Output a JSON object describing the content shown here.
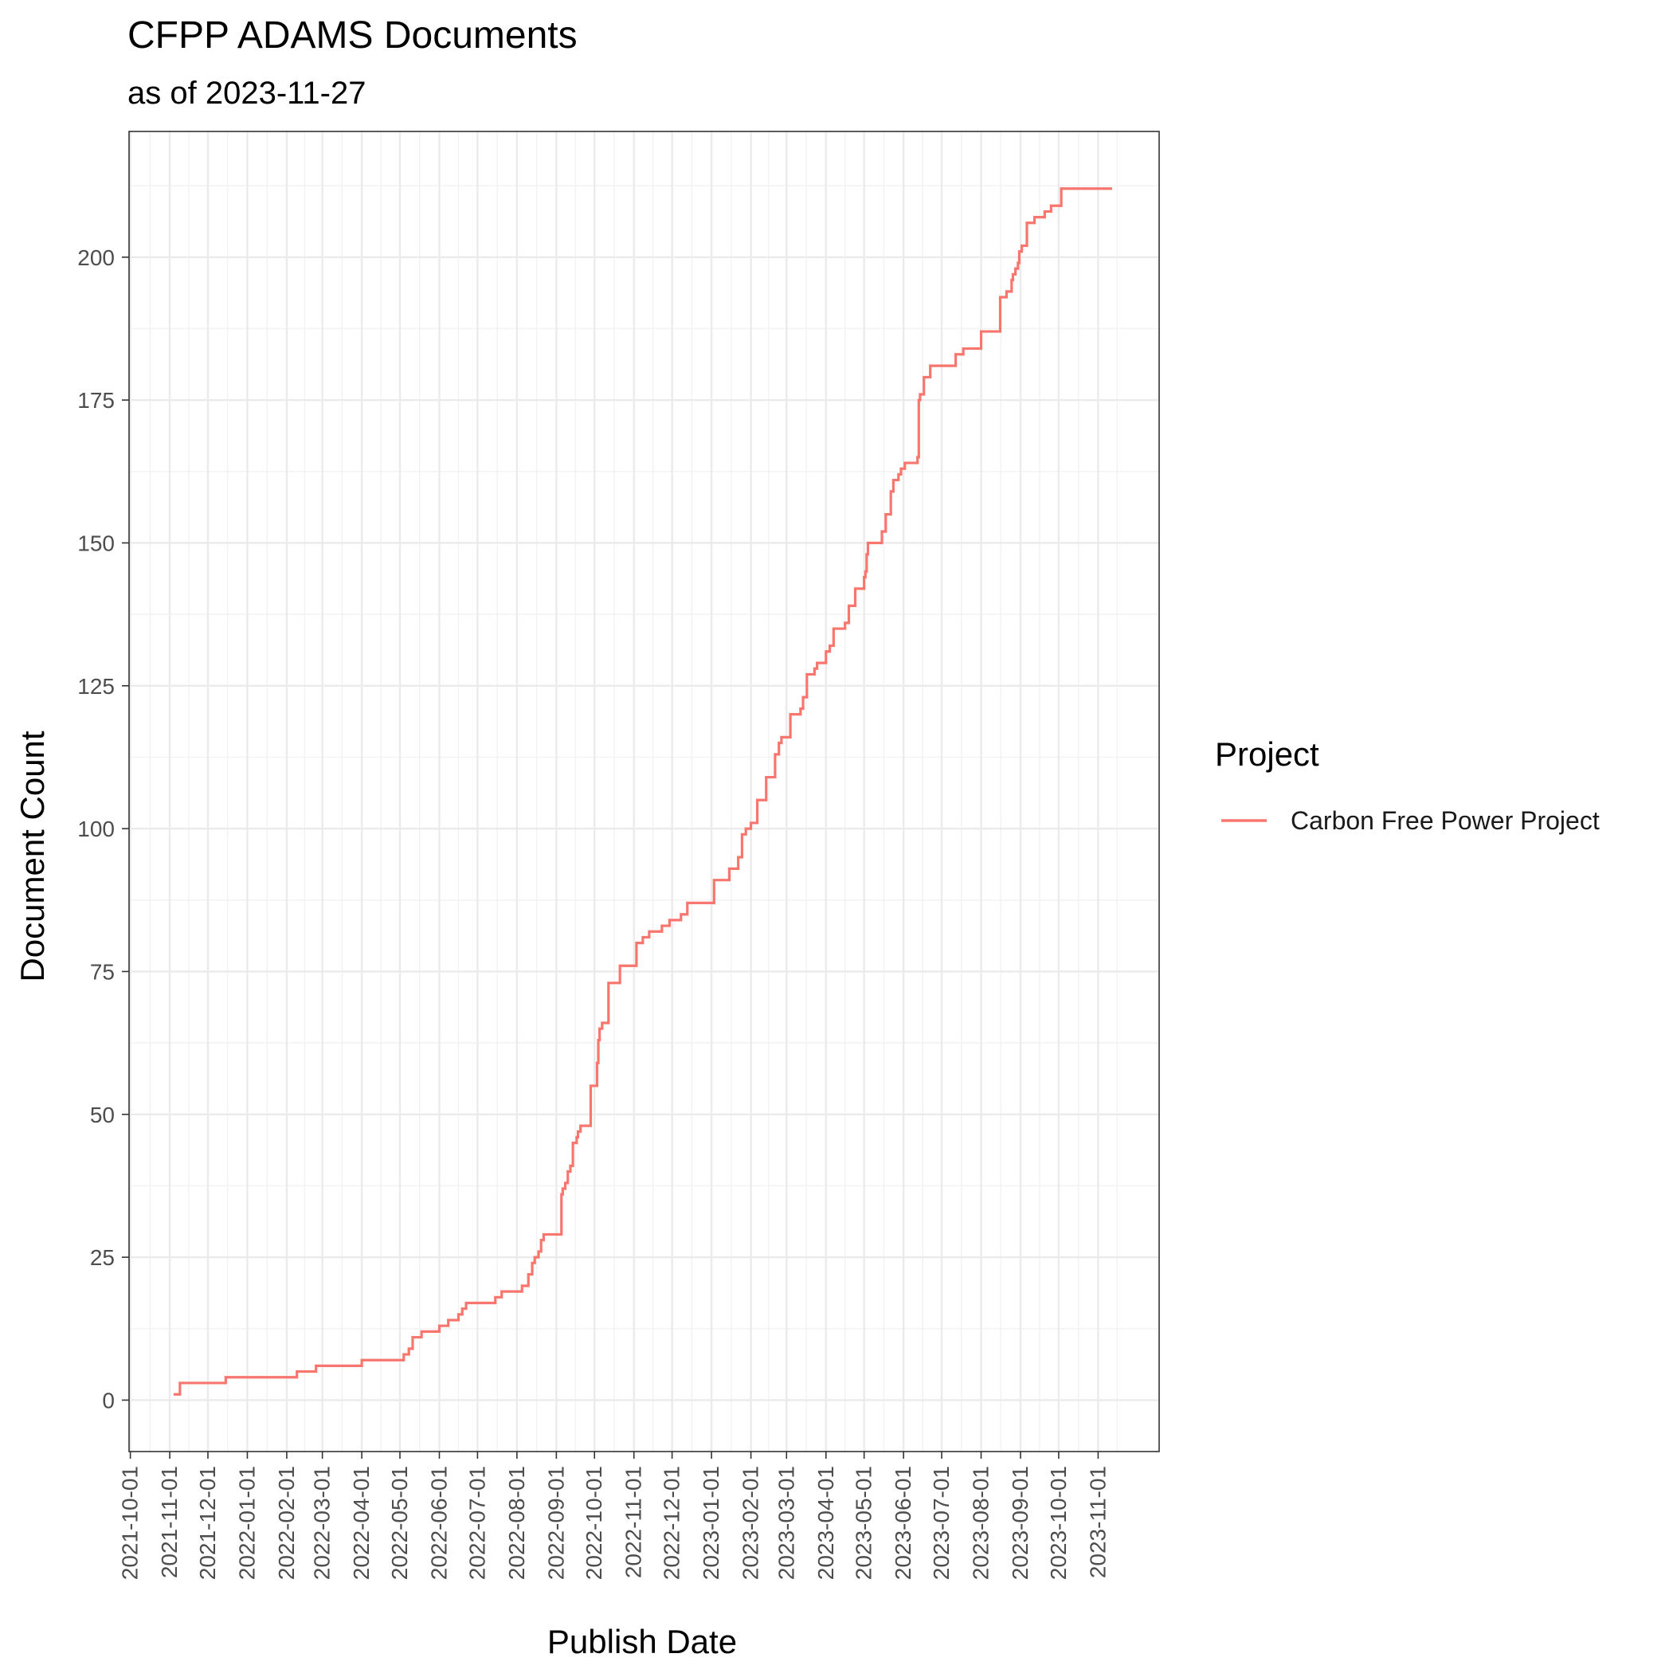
{
  "chart_data": {
    "type": "line",
    "step": true,
    "title": "CFPP ADAMS Documents",
    "subtitle": "as of 2023-11-27",
    "xlabel": "Publish Date",
    "ylabel": "Document Count",
    "x_type": "date",
    "xlim": [
      "2021-09-30",
      "2023-12-19"
    ],
    "ylim": [
      -9,
      222
    ],
    "x_ticks": [
      "2021-10-01",
      "2021-11-01",
      "2021-12-01",
      "2022-01-01",
      "2022-02-01",
      "2022-03-01",
      "2022-04-01",
      "2022-05-01",
      "2022-06-01",
      "2022-07-01",
      "2022-08-01",
      "2022-09-01",
      "2022-10-01",
      "2022-11-01",
      "2022-12-01",
      "2023-01-01",
      "2023-02-01",
      "2023-03-01",
      "2023-04-01",
      "2023-05-01",
      "2023-06-01",
      "2023-07-01",
      "2023-08-01",
      "2023-09-01",
      "2023-10-01",
      "2023-11-01"
    ],
    "y_ticks": [
      0,
      25,
      50,
      75,
      100,
      125,
      150,
      175,
      200
    ],
    "grid": true,
    "legend": {
      "title": "Project",
      "position": "right"
    },
    "colors": {
      "series": "#F8766D"
    },
    "series": [
      {
        "name": "Carbon Free Power Project",
        "x": [
          "2021-11-04",
          "2021-11-09",
          "2021-11-10",
          "2021-12-15",
          "2022-02-09",
          "2022-02-24",
          "2022-04-01",
          "2022-05-04",
          "2022-05-08",
          "2022-05-11",
          "2022-05-13",
          "2022-05-18",
          "2022-06-01",
          "2022-06-08",
          "2022-06-16",
          "2022-06-19",
          "2022-06-22",
          "2022-07-15",
          "2022-07-20",
          "2022-08-05",
          "2022-08-10",
          "2022-08-13",
          "2022-08-15",
          "2022-08-18",
          "2022-08-20",
          "2022-08-22",
          "2022-08-25",
          "2022-09-05",
          "2022-09-06",
          "2022-09-08",
          "2022-09-10",
          "2022-09-12",
          "2022-09-14",
          "2022-09-17",
          "2022-09-18",
          "2022-09-20",
          "2022-09-28",
          "2022-10-03",
          "2022-10-04",
          "2022-10-05",
          "2022-10-07",
          "2022-10-12",
          "2022-10-14",
          "2022-10-21",
          "2022-11-03",
          "2022-11-08",
          "2022-11-13",
          "2022-11-23",
          "2022-11-29",
          "2022-12-08",
          "2022-12-13",
          "2022-12-19",
          "2023-01-03",
          "2023-01-15",
          "2023-01-22",
          "2023-01-25",
          "2023-01-28",
          "2023-02-01",
          "2023-02-06",
          "2023-02-13",
          "2023-02-20",
          "2023-02-22",
          "2023-02-23",
          "2023-02-25",
          "2023-03-04",
          "2023-03-12",
          "2023-03-14",
          "2023-03-17",
          "2023-03-22",
          "2023-03-23",
          "2023-03-25",
          "2023-04-01",
          "2023-04-04",
          "2023-04-07",
          "2023-04-16",
          "2023-04-19",
          "2023-04-24",
          "2023-05-01",
          "2023-05-02",
          "2023-05-03",
          "2023-05-04",
          "2023-05-15",
          "2023-05-18",
          "2023-05-22",
          "2023-05-24",
          "2023-05-28",
          "2023-05-30",
          "2023-06-02",
          "2023-06-12",
          "2023-06-13",
          "2023-06-14",
          "2023-06-17",
          "2023-06-22",
          "2023-07-12",
          "2023-07-18",
          "2023-08-01",
          "2023-08-16",
          "2023-08-21",
          "2023-08-25",
          "2023-08-26",
          "2023-08-28",
          "2023-08-30",
          "2023-08-31",
          "2023-09-02",
          "2023-09-06",
          "2023-09-12",
          "2023-09-20",
          "2023-09-24",
          "2023-09-25",
          "2023-09-28",
          "2023-10-03",
          "2023-10-06",
          "2023-10-10",
          "2023-10-15",
          "2023-10-28",
          "2023-11-12"
        ],
        "values": [
          1,
          3,
          3,
          4,
          5,
          6,
          7,
          8,
          9,
          11,
          11,
          12,
          13,
          14,
          15,
          16,
          17,
          18,
          19,
          20,
          22,
          24,
          25,
          26,
          28,
          29,
          29,
          36,
          37,
          38,
          40,
          41,
          45,
          46,
          47,
          48,
          55,
          59,
          63,
          65,
          66,
          73,
          73,
          76,
          80,
          81,
          82,
          83,
          84,
          85,
          87,
          87,
          91,
          93,
          95,
          99,
          100,
          101,
          105,
          109,
          113,
          113,
          115,
          116,
          120,
          121,
          123,
          127,
          127,
          128,
          129,
          131,
          132,
          135,
          136,
          139,
          142,
          144,
          145,
          148,
          150,
          152,
          155,
          159,
          161,
          162,
          163,
          164,
          165,
          175,
          176,
          179,
          181,
          183,
          184,
          187,
          193,
          194,
          196,
          197,
          198,
          199,
          201,
          202,
          206,
          207,
          208,
          208,
          209,
          209,
          212,
          212,
          212,
          212,
          212,
          212
        ]
      }
    ]
  }
}
